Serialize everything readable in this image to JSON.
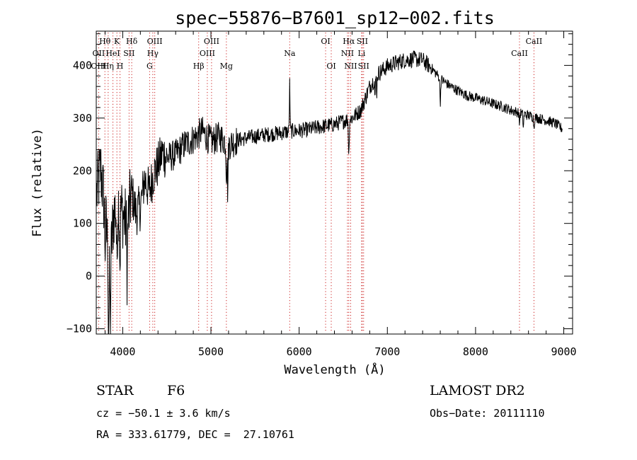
{
  "chart_data": {
    "type": "line",
    "title": "spec−55876−B7601_sp12−002.fits",
    "xlabel": "Wavelength (Å)",
    "ylabel": "Flux (relative)",
    "xlim": [
      3700,
      9100
    ],
    "ylim": [
      -110,
      465
    ],
    "x_ticks": [
      4000,
      5000,
      6000,
      7000,
      8000,
      9000
    ],
    "y_ticks": [
      -100,
      0,
      100,
      200,
      300,
      400
    ],
    "line_color": "#000000",
    "marker_color": "#cc2222",
    "spectrum_anchors": [
      [
        3700,
        150
      ],
      [
        3750,
        205
      ],
      [
        3800,
        120
      ],
      [
        3850,
        10
      ],
      [
        3900,
        120
      ],
      [
        3950,
        140
      ],
      [
        4000,
        120
      ],
      [
        4050,
        90
      ],
      [
        4100,
        160
      ],
      [
        4150,
        120
      ],
      [
        4200,
        130
      ],
      [
        4250,
        185
      ],
      [
        4300,
        160
      ],
      [
        4350,
        195
      ],
      [
        4400,
        210
      ],
      [
        4450,
        235
      ],
      [
        4500,
        225
      ],
      [
        4600,
        230
      ],
      [
        4700,
        250
      ],
      [
        4800,
        260
      ],
      [
        4900,
        275
      ],
      [
        5000,
        255
      ],
      [
        5100,
        265
      ],
      [
        5200,
        250
      ],
      [
        5300,
        258
      ],
      [
        5400,
        262
      ],
      [
        5500,
        265
      ],
      [
        5600,
        268
      ],
      [
        5700,
        270
      ],
      [
        5800,
        272
      ],
      [
        5900,
        275
      ],
      [
        6000,
        276
      ],
      [
        6100,
        278
      ],
      [
        6200,
        282
      ],
      [
        6300,
        285
      ],
      [
        6400,
        288
      ],
      [
        6500,
        294
      ],
      [
        6600,
        300
      ],
      [
        6700,
        315
      ],
      [
        6800,
        360
      ],
      [
        6900,
        385
      ],
      [
        7000,
        398
      ],
      [
        7100,
        405
      ],
      [
        7200,
        410
      ],
      [
        7300,
        412
      ],
      [
        7400,
        410
      ],
      [
        7500,
        395
      ],
      [
        7600,
        375
      ],
      [
        7700,
        362
      ],
      [
        7800,
        352
      ],
      [
        7900,
        343
      ],
      [
        8000,
        338
      ],
      [
        8100,
        333
      ],
      [
        8200,
        327
      ],
      [
        8300,
        322
      ],
      [
        8400,
        315
      ],
      [
        8500,
        310
      ],
      [
        8600,
        305
      ],
      [
        8700,
        300
      ],
      [
        8800,
        296
      ],
      [
        8900,
        290
      ],
      [
        8980,
        280
      ]
    ],
    "spectral_lines": [
      {
        "label": "Hθ",
        "wavelength": 3798,
        "row": 1
      },
      {
        "label": "K",
        "wavelength": 3934,
        "row": 1
      },
      {
        "label": "Hδ",
        "wavelength": 4102,
        "row": 1
      },
      {
        "label": "OIII",
        "wavelength": 4363,
        "row": 1
      },
      {
        "label": "OIII",
        "wavelength": 5007,
        "row": 1
      },
      {
        "label": "OI",
        "wavelength": 6300,
        "row": 1
      },
      {
        "label": "Hα",
        "wavelength": 6563,
        "row": 1
      },
      {
        "label": "SII",
        "wavelength": 6716,
        "row": 1
      },
      {
        "label": "CaII",
        "wavelength": 8662,
        "row": 1
      },
      {
        "label": "OII",
        "wavelength": 3727,
        "row": 2
      },
      {
        "label": "HeI",
        "wavelength": 3889,
        "row": 2
      },
      {
        "label": "SII",
        "wavelength": 4072,
        "row": 2
      },
      {
        "label": "Hγ",
        "wavelength": 4341,
        "row": 2
      },
      {
        "label": "OIII",
        "wavelength": 4959,
        "row": 2
      },
      {
        "label": "Na",
        "wavelength": 5893,
        "row": 2
      },
      {
        "label": "NII",
        "wavelength": 6548,
        "row": 2
      },
      {
        "label": "Li",
        "wavelength": 6708,
        "row": 2
      },
      {
        "label": "CaII",
        "wavelength": 8498,
        "row": 2
      },
      {
        "label": "OIII",
        "wavelength": 3727,
        "row": 3
      },
      {
        "label": "Hη",
        "wavelength": 3835,
        "row": 3
      },
      {
        "label": "H",
        "wavelength": 3969,
        "row": 3
      },
      {
        "label": "G",
        "wavelength": 4305,
        "row": 3
      },
      {
        "label": "Hβ",
        "wavelength": 4861,
        "row": 3
      },
      {
        "label": "Mg",
        "wavelength": 5175,
        "row": 3
      },
      {
        "label": "OI",
        "wavelength": 6364,
        "row": 3
      },
      {
        "label": "NII",
        "wavelength": 6584,
        "row": 3
      },
      {
        "label": "SII",
        "wavelength": 6731,
        "row": 3
      }
    ]
  },
  "info": {
    "object_class": "STAR",
    "subclass": "F6",
    "survey": "LAMOST DR2",
    "redshift_line": "cz = −50.1 ± 3.6 km/s",
    "obs_date_line": "Obs−Date: 20111110",
    "coords_line": "RA = 333.61779, DEC =  27.10761"
  }
}
